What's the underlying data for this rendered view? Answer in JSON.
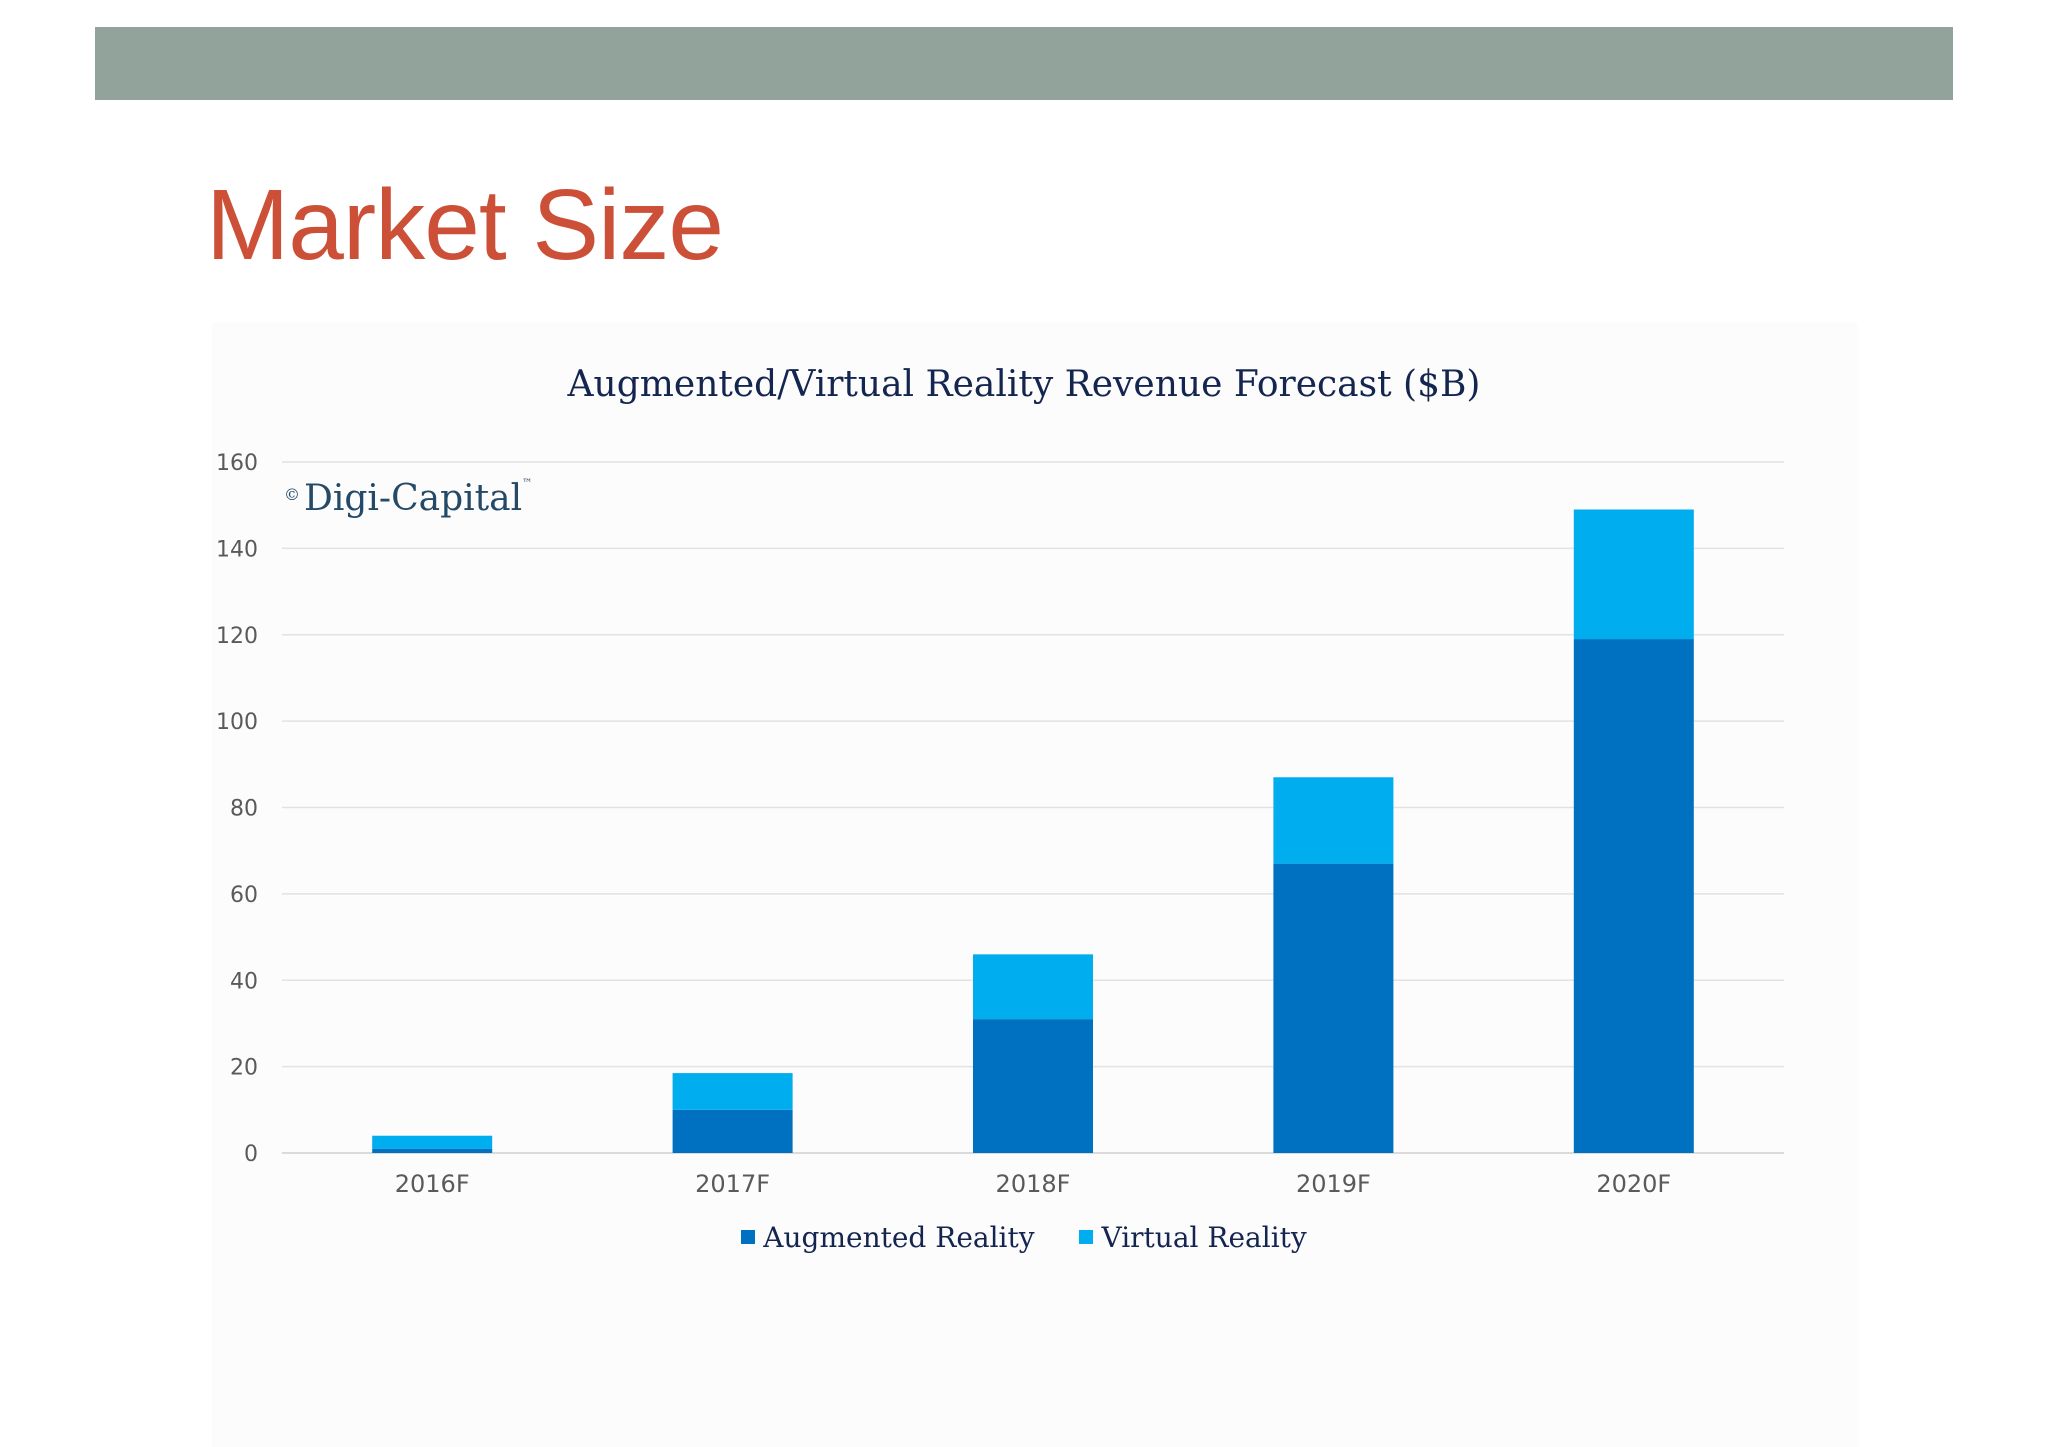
{
  "slide": {
    "title": "Market Size"
  },
  "brand": {
    "copyright": "©",
    "name": "Digi-Capital",
    "trademark": "™"
  },
  "colors": {
    "band": "#91a39b",
    "title": "#cc5038",
    "augmented": "#0070c0",
    "virtual": "#00adef"
  },
  "chart_data": {
    "type": "bar",
    "stacked": true,
    "title": "Augmented/Virtual Reality Revenue Forecast ($B)",
    "xlabel": "",
    "ylabel": "",
    "ylim": [
      0,
      160
    ],
    "yticks": [
      0,
      20,
      40,
      60,
      80,
      100,
      120,
      140,
      160
    ],
    "grid": true,
    "legend_position": "bottom",
    "categories": [
      "2016F",
      "2017F",
      "2018F",
      "2019F",
      "2020F"
    ],
    "series": [
      {
        "name": "Augmented Reality",
        "color": "#0070c0",
        "values": [
          1,
          10,
          31,
          67,
          119
        ]
      },
      {
        "name": "Virtual Reality",
        "color": "#00adef",
        "values": [
          3,
          8.5,
          15,
          20,
          30
        ]
      }
    ]
  }
}
